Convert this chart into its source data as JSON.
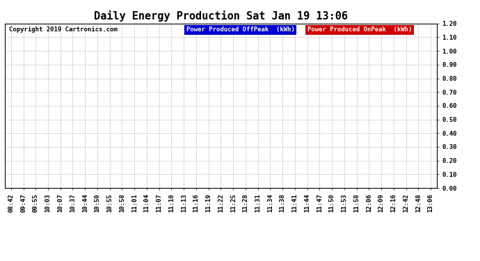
{
  "title": "Daily Energy Production Sat Jan 19 13:06",
  "copyright": "Copyright 2019 Cartronics.com",
  "legend_label_1": "Power Produced OffPeak  (kWh)",
  "legend_label_2": "Power Produced OnPeak  (kWh)",
  "legend_color_1": "#0000cc",
  "legend_color_2": "#cc0000",
  "legend_text_color": "#ffffff",
  "ylim_min": 0.0,
  "ylim_max": 1.2,
  "yticks": [
    0.0,
    0.1,
    0.2,
    0.3,
    0.4,
    0.5,
    0.6,
    0.7,
    0.8,
    0.9,
    1.0,
    1.1,
    1.2
  ],
  "xtick_labels": [
    "08:42",
    "09:47",
    "09:55",
    "10:03",
    "10:07",
    "10:37",
    "10:44",
    "10:50",
    "10:55",
    "10:58",
    "11:01",
    "11:04",
    "11:07",
    "11:10",
    "11:13",
    "11:16",
    "11:19",
    "11:22",
    "11:25",
    "11:28",
    "11:31",
    "11:34",
    "11:38",
    "11:41",
    "11:44",
    "11:47",
    "11:50",
    "11:53",
    "11:58",
    "12:06",
    "12:09",
    "12:16",
    "12:42",
    "12:48",
    "13:06"
  ],
  "background_color": "#ffffff",
  "grid_color": "#aaaaaa",
  "title_fontsize": 11,
  "tick_fontsize": 6.5,
  "copyright_fontsize": 6.5
}
